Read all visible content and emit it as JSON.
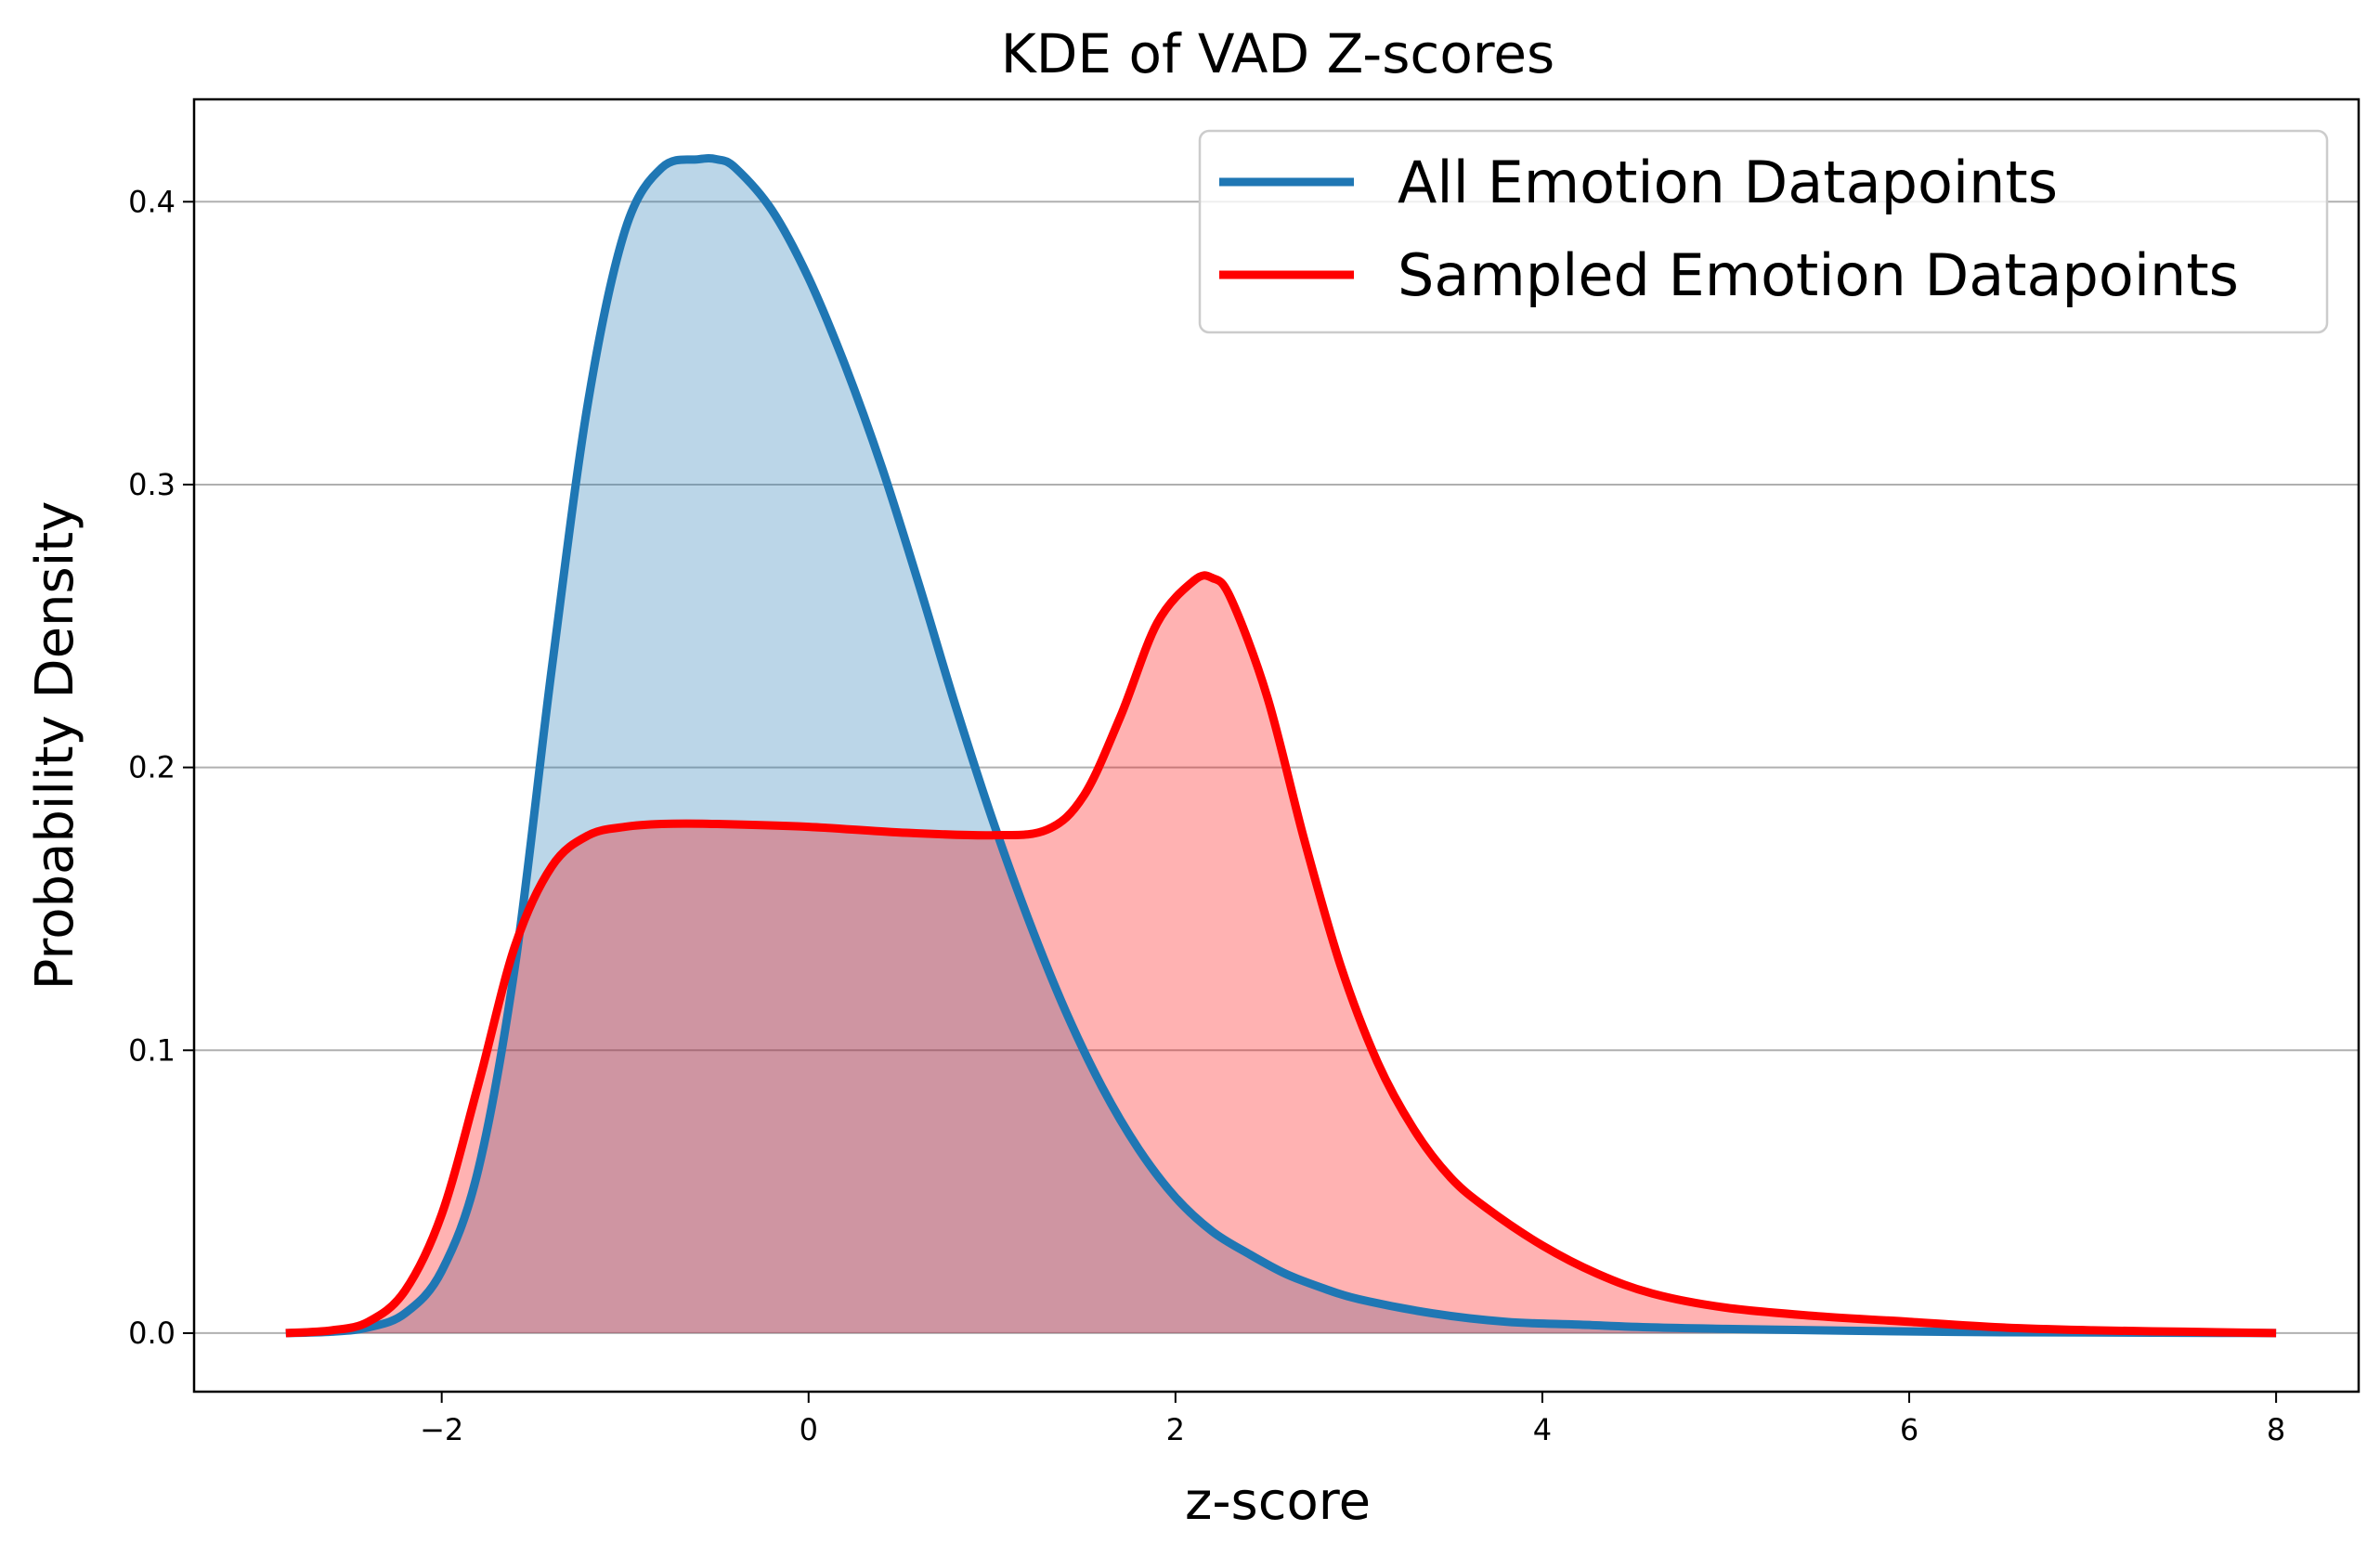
{
  "chart_data": {
    "type": "area",
    "title": "KDE of VAD Z-scores",
    "xlabel": "z-score",
    "ylabel": "Probability Density",
    "xlim": [
      -3.35,
      8.45
    ],
    "ylim": [
      -0.0207,
      0.4362
    ],
    "xticks": [
      -2,
      0,
      2,
      4,
      6,
      8
    ],
    "xtick_labels": [
      "−2",
      "0",
      "2",
      "4",
      "6",
      "8"
    ],
    "yticks": [
      0.0,
      0.1,
      0.2,
      0.3,
      0.4
    ],
    "ytick_labels": [
      "0.0",
      "0.1",
      "0.2",
      "0.3",
      "0.4"
    ],
    "grid": "y",
    "legend_position": "top-right",
    "series": [
      {
        "name": "All Emotion Datapoints",
        "color": "#1f77b4",
        "fill": "#b8d5e8",
        "x": [
          -2.85,
          -2.6,
          -2.4,
          -2.2,
          -2.0,
          -1.8,
          -1.6,
          -1.4,
          -1.2,
          -1.0,
          -0.8,
          -0.6,
          -0.5,
          -0.4,
          -0.2,
          0.0,
          0.2,
          0.4,
          0.6,
          0.8,
          1.0,
          1.2,
          1.4,
          1.6,
          1.8,
          2.0,
          2.2,
          2.4,
          2.6,
          2.8,
          3.0,
          3.4,
          3.8,
          4.2,
          4.6,
          5.0,
          5.5,
          6.0,
          6.5,
          7.0,
          7.5,
          8.0
        ],
        "y": [
          0.0,
          0.0005,
          0.002,
          0.007,
          0.022,
          0.058,
          0.13,
          0.235,
          0.33,
          0.39,
          0.412,
          0.415,
          0.415,
          0.412,
          0.397,
          0.373,
          0.342,
          0.306,
          0.265,
          0.222,
          0.182,
          0.146,
          0.114,
          0.087,
          0.065,
          0.048,
          0.036,
          0.028,
          0.021,
          0.016,
          0.012,
          0.007,
          0.004,
          0.003,
          0.002,
          0.0015,
          0.001,
          0.0006,
          0.0003,
          0.0002,
          0.0001,
          0.0
        ]
      },
      {
        "name": "Sampled Emotion Datapoints",
        "color": "#ff0000",
        "fill": "#ffb1b1",
        "x": [
          -2.85,
          -2.6,
          -2.4,
          -2.2,
          -2.0,
          -1.8,
          -1.6,
          -1.4,
          -1.2,
          -1.0,
          -0.8,
          -0.5,
          0.0,
          0.5,
          1.0,
          1.3,
          1.5,
          1.7,
          1.9,
          2.1,
          2.2,
          2.3,
          2.5,
          2.7,
          2.9,
          3.1,
          3.3,
          3.5,
          3.7,
          4.0,
          4.3,
          4.6,
          5.0,
          5.5,
          6.0,
          6.5,
          7.0,
          7.5,
          8.0
        ],
        "y": [
          0.0,
          0.001,
          0.004,
          0.015,
          0.042,
          0.088,
          0.137,
          0.165,
          0.176,
          0.179,
          0.18,
          0.18,
          0.179,
          0.177,
          0.176,
          0.178,
          0.19,
          0.218,
          0.251,
          0.266,
          0.267,
          0.26,
          0.225,
          0.175,
          0.13,
          0.096,
          0.072,
          0.055,
          0.044,
          0.031,
          0.021,
          0.014,
          0.009,
          0.006,
          0.004,
          0.002,
          0.001,
          0.0005,
          0.0
        ]
      }
    ]
  }
}
